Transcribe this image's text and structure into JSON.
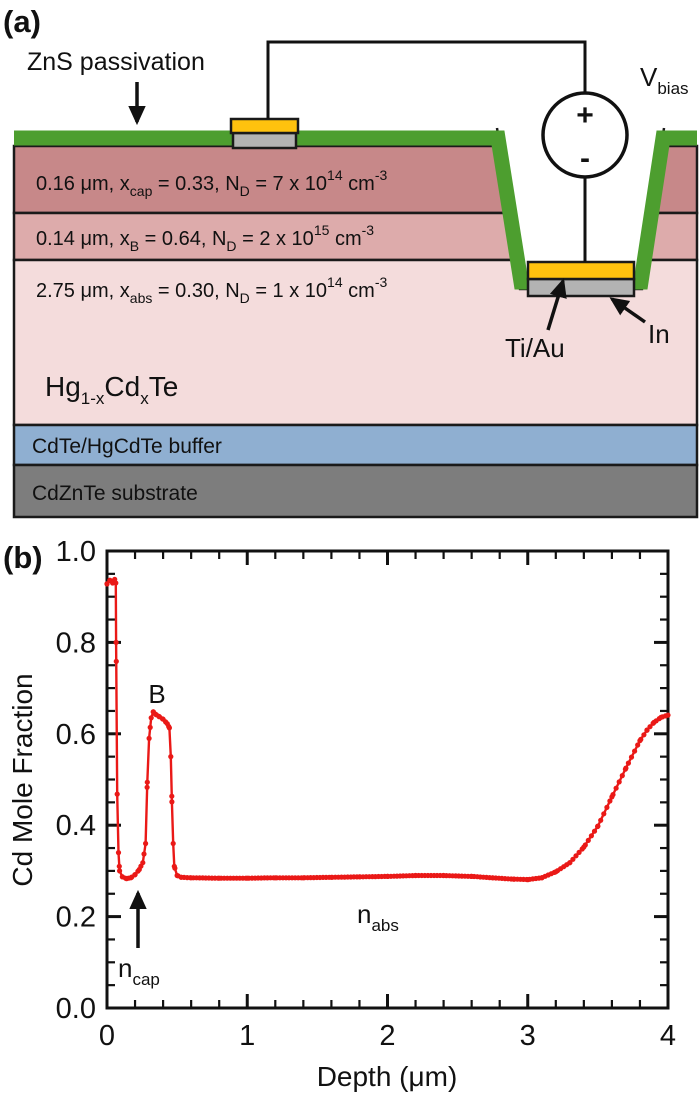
{
  "panel_a": {
    "label": "(a)",
    "zns_label": "ZnS passivation",
    "vbias": {
      "base": "V",
      "sub": "bias"
    },
    "polarity_plus": "+",
    "polarity_minus": "-",
    "tiau_label": "Ti/Au",
    "in_label": "In",
    "layers": {
      "cap": {
        "t1": "0.16 μm, x",
        "s1": "cap",
        "t2": " = 0.33, N",
        "s2": "D",
        "t3": " = 7 x 10",
        "p1": "14",
        "t4": " cm",
        "p2": "-3"
      },
      "barrier": {
        "t1": "0.14 μm, x",
        "s1": "B",
        "t2": " = 0.64, N",
        "s2": "D",
        "t3": " = 2 x 10",
        "p1": "15",
        "t4": " cm",
        "p2": "-3"
      },
      "absorber": {
        "t1": "2.75 μm, x",
        "s1": "abs",
        "t2": " = 0.30, N",
        "s2": "D",
        "t3": " = 1 x 10",
        "p1": "14",
        "t4": " cm",
        "p2": "-3"
      },
      "hgcdte": {
        "t1": "Hg",
        "s1": "1-x",
        "t2": "Cd",
        "s2": "x",
        "t3": "Te"
      },
      "buffer": "CdTe/HgCdTe buffer",
      "substrate": "CdZnTe substrate"
    },
    "colors": {
      "passivation_green": "#4d9e2f",
      "cap_layer": "#c78889",
      "barrier_layer": "#ddabab",
      "absorber_layer": "#f4dcdc",
      "buffer_layer": "#8fafd1",
      "substrate_layer": "#7d7d7d",
      "contact_gold": "#ffc20e",
      "contact_gray": "#b3b3b3",
      "outline": "#1a1a1a"
    }
  },
  "panel_b": {
    "label": "(b)",
    "xlabel": "Depth (μm)",
    "ylabel": "Cd Mole Fraction",
    "x_ticks": [
      "0",
      "1",
      "2",
      "3",
      "4"
    ],
    "y_ticks": [
      "0.0",
      "0.2",
      "0.4",
      "0.6",
      "0.8",
      "1.0"
    ],
    "annotations": {
      "b_peak": "B",
      "ncap_base": "n",
      "ncap_sub": "cap",
      "nabs_base": "n",
      "nabs_sub": "abs"
    }
  },
  "chart_data": {
    "type": "line",
    "title": "",
    "xlabel": "Depth (μm)",
    "ylabel": "Cd Mole Fraction",
    "xlim": [
      0,
      4
    ],
    "ylim": [
      0.0,
      1.0
    ],
    "x_major_ticks": [
      0,
      1,
      2,
      3,
      4
    ],
    "y_major_ticks": [
      0.0,
      0.2,
      0.4,
      0.6,
      0.8,
      1.0
    ],
    "x_minor_step": 0.2,
    "y_minor_step": 0.05,
    "grid": false,
    "legend": "none",
    "annotations": [
      {
        "label": "B",
        "x": 0.35,
        "y": 0.71
      },
      {
        "label": "n_cap",
        "x": 0.22,
        "y": 0.08,
        "arrow_to": [
          0.22,
          0.26
        ]
      },
      {
        "label": "n_abs",
        "x": 1.8,
        "y": 0.2
      }
    ],
    "series": [
      {
        "name": "Cd mole fraction profile",
        "color": "#ea1917",
        "marker": "circle",
        "keypoints": [
          [
            0.0,
            0.928
          ],
          [
            0.02,
            0.936
          ],
          [
            0.04,
            0.93
          ],
          [
            0.055,
            0.938
          ],
          [
            0.063,
            0.93
          ],
          [
            0.065,
            0.8
          ],
          [
            0.073,
            0.468
          ],
          [
            0.082,
            0.34
          ],
          [
            0.09,
            0.3
          ],
          [
            0.11,
            0.287
          ],
          [
            0.14,
            0.283
          ],
          [
            0.17,
            0.285
          ],
          [
            0.2,
            0.292
          ],
          [
            0.23,
            0.303
          ],
          [
            0.255,
            0.318
          ],
          [
            0.275,
            0.36
          ],
          [
            0.287,
            0.494
          ],
          [
            0.3,
            0.59
          ],
          [
            0.315,
            0.635
          ],
          [
            0.33,
            0.648
          ],
          [
            0.345,
            0.643
          ],
          [
            0.37,
            0.638
          ],
          [
            0.4,
            0.632
          ],
          [
            0.43,
            0.622
          ],
          [
            0.445,
            0.613
          ],
          [
            0.455,
            0.55
          ],
          [
            0.463,
            0.451
          ],
          [
            0.472,
            0.36
          ],
          [
            0.48,
            0.31
          ],
          [
            0.5,
            0.29
          ],
          [
            0.53,
            0.286
          ],
          [
            0.6,
            0.285
          ],
          [
            0.8,
            0.284
          ],
          [
            1.0,
            0.284
          ],
          [
            1.2,
            0.285
          ],
          [
            1.4,
            0.285
          ],
          [
            1.6,
            0.286
          ],
          [
            1.8,
            0.287
          ],
          [
            2.0,
            0.288
          ],
          [
            2.2,
            0.29
          ],
          [
            2.4,
            0.29
          ],
          [
            2.6,
            0.288
          ],
          [
            2.75,
            0.285
          ],
          [
            2.9,
            0.282
          ],
          [
            3.0,
            0.281
          ],
          [
            3.1,
            0.285
          ],
          [
            3.2,
            0.298
          ],
          [
            3.3,
            0.318
          ],
          [
            3.4,
            0.352
          ],
          [
            3.5,
            0.398
          ],
          [
            3.6,
            0.462
          ],
          [
            3.7,
            0.525
          ],
          [
            3.8,
            0.585
          ],
          [
            3.85,
            0.608
          ],
          [
            3.9,
            0.625
          ],
          [
            3.95,
            0.636
          ],
          [
            4.0,
            0.641
          ]
        ]
      }
    ]
  }
}
